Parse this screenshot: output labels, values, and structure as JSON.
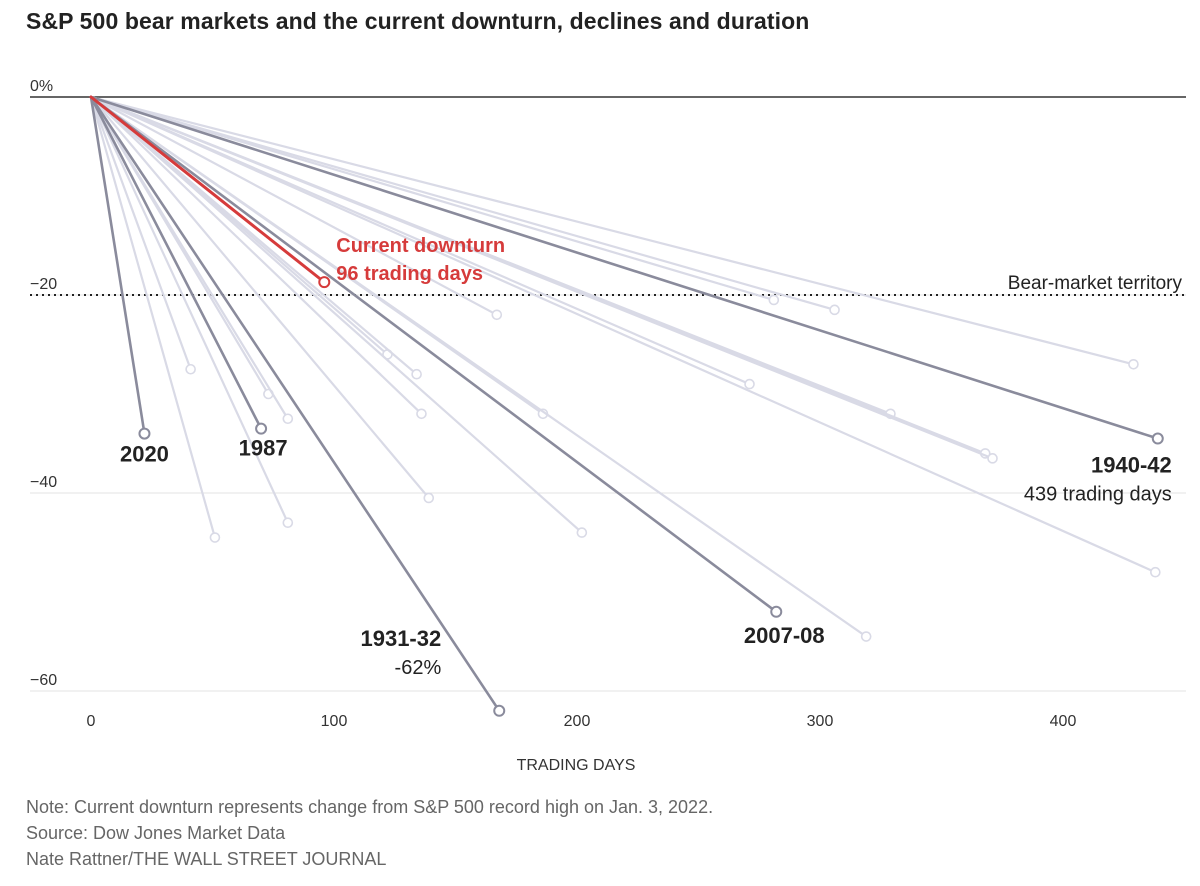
{
  "title": "S&P 500 bear markets and the current downturn, declines and duration",
  "chart_data": {
    "type": "line",
    "title": "S&P 500 bear markets and the current downturn, declines and duration",
    "xlabel": "TRADING DAYS",
    "ylabel": "",
    "xlim": [
      0,
      450
    ],
    "ylim": [
      -62,
      0
    ],
    "x_ticks": [
      0,
      100,
      200,
      300,
      400
    ],
    "y_ticks": [
      {
        "value": 0,
        "label": "0%"
      },
      {
        "value": -20,
        "label": "−20"
      },
      {
        "value": -40,
        "label": "−40"
      },
      {
        "value": -60,
        "label": "−60"
      }
    ],
    "grid": "horizontal",
    "threshold": {
      "value": -20,
      "label": "Bear-market territory"
    },
    "series": [
      {
        "name": "Current downturn",
        "days": 96,
        "decline": -18.7,
        "style": "current",
        "label_lines": [
          "Current downturn",
          "96 trading days"
        ]
      },
      {
        "name": "2020",
        "days": 22,
        "decline": -34,
        "style": "highlight",
        "label_lines": [
          "2020"
        ]
      },
      {
        "name": "1987",
        "days": 70,
        "decline": -33.5,
        "style": "highlight",
        "label_lines": [
          "1987"
        ]
      },
      {
        "name": "1931-32",
        "days": 168,
        "decline": -62,
        "style": "highlight",
        "label_lines": [
          "1931-32",
          "-62%"
        ]
      },
      {
        "name": "2007-08",
        "days": 282,
        "decline": -52,
        "style": "highlight",
        "label_lines": [
          "2007-08"
        ]
      },
      {
        "name": "1940-42",
        "days": 439,
        "decline": -34.5,
        "style": "highlight",
        "label_lines": [
          "1940-42",
          "439 trading days"
        ]
      },
      {
        "days": 41,
        "decline": -27.5,
        "style": "other"
      },
      {
        "days": 51,
        "decline": -44.5,
        "style": "other"
      },
      {
        "days": 73,
        "decline": -30,
        "style": "other"
      },
      {
        "days": 81,
        "decline": -32.5,
        "style": "other"
      },
      {
        "days": 81,
        "decline": -43,
        "style": "other"
      },
      {
        "days": 122,
        "decline": -26,
        "style": "other"
      },
      {
        "days": 134,
        "decline": -28,
        "style": "other"
      },
      {
        "days": 136,
        "decline": -32,
        "style": "other"
      },
      {
        "days": 139,
        "decline": -40.5,
        "style": "other"
      },
      {
        "days": 167,
        "decline": -22,
        "style": "other"
      },
      {
        "days": 186,
        "decline": -32,
        "style": "other"
      },
      {
        "days": 202,
        "decline": -44,
        "style": "other"
      },
      {
        "days": 271,
        "decline": -29,
        "style": "other"
      },
      {
        "days": 281,
        "decline": -20.5,
        "style": "other"
      },
      {
        "days": 306,
        "decline": -21.5,
        "style": "other"
      },
      {
        "days": 319,
        "decline": -54.5,
        "style": "other"
      },
      {
        "days": 329,
        "decline": -32,
        "style": "other"
      },
      {
        "days": 368,
        "decline": -36,
        "style": "other"
      },
      {
        "days": 371,
        "decline": -36.5,
        "style": "other"
      },
      {
        "days": 429,
        "decline": -27,
        "style": "other"
      },
      {
        "days": 438,
        "decline": -48,
        "style": "other"
      }
    ],
    "colors": {
      "current": "#d63b3b",
      "highlight": "#8a8b9c",
      "other": "#d9dae6",
      "text": "#222222"
    }
  },
  "notes": [
    "Note: Current downturn represents change from S&P 500 record high on Jan. 3, 2022.",
    "Source: Dow Jones Market Data",
    "Nate Rattner/THE WALL STREET JOURNAL"
  ]
}
